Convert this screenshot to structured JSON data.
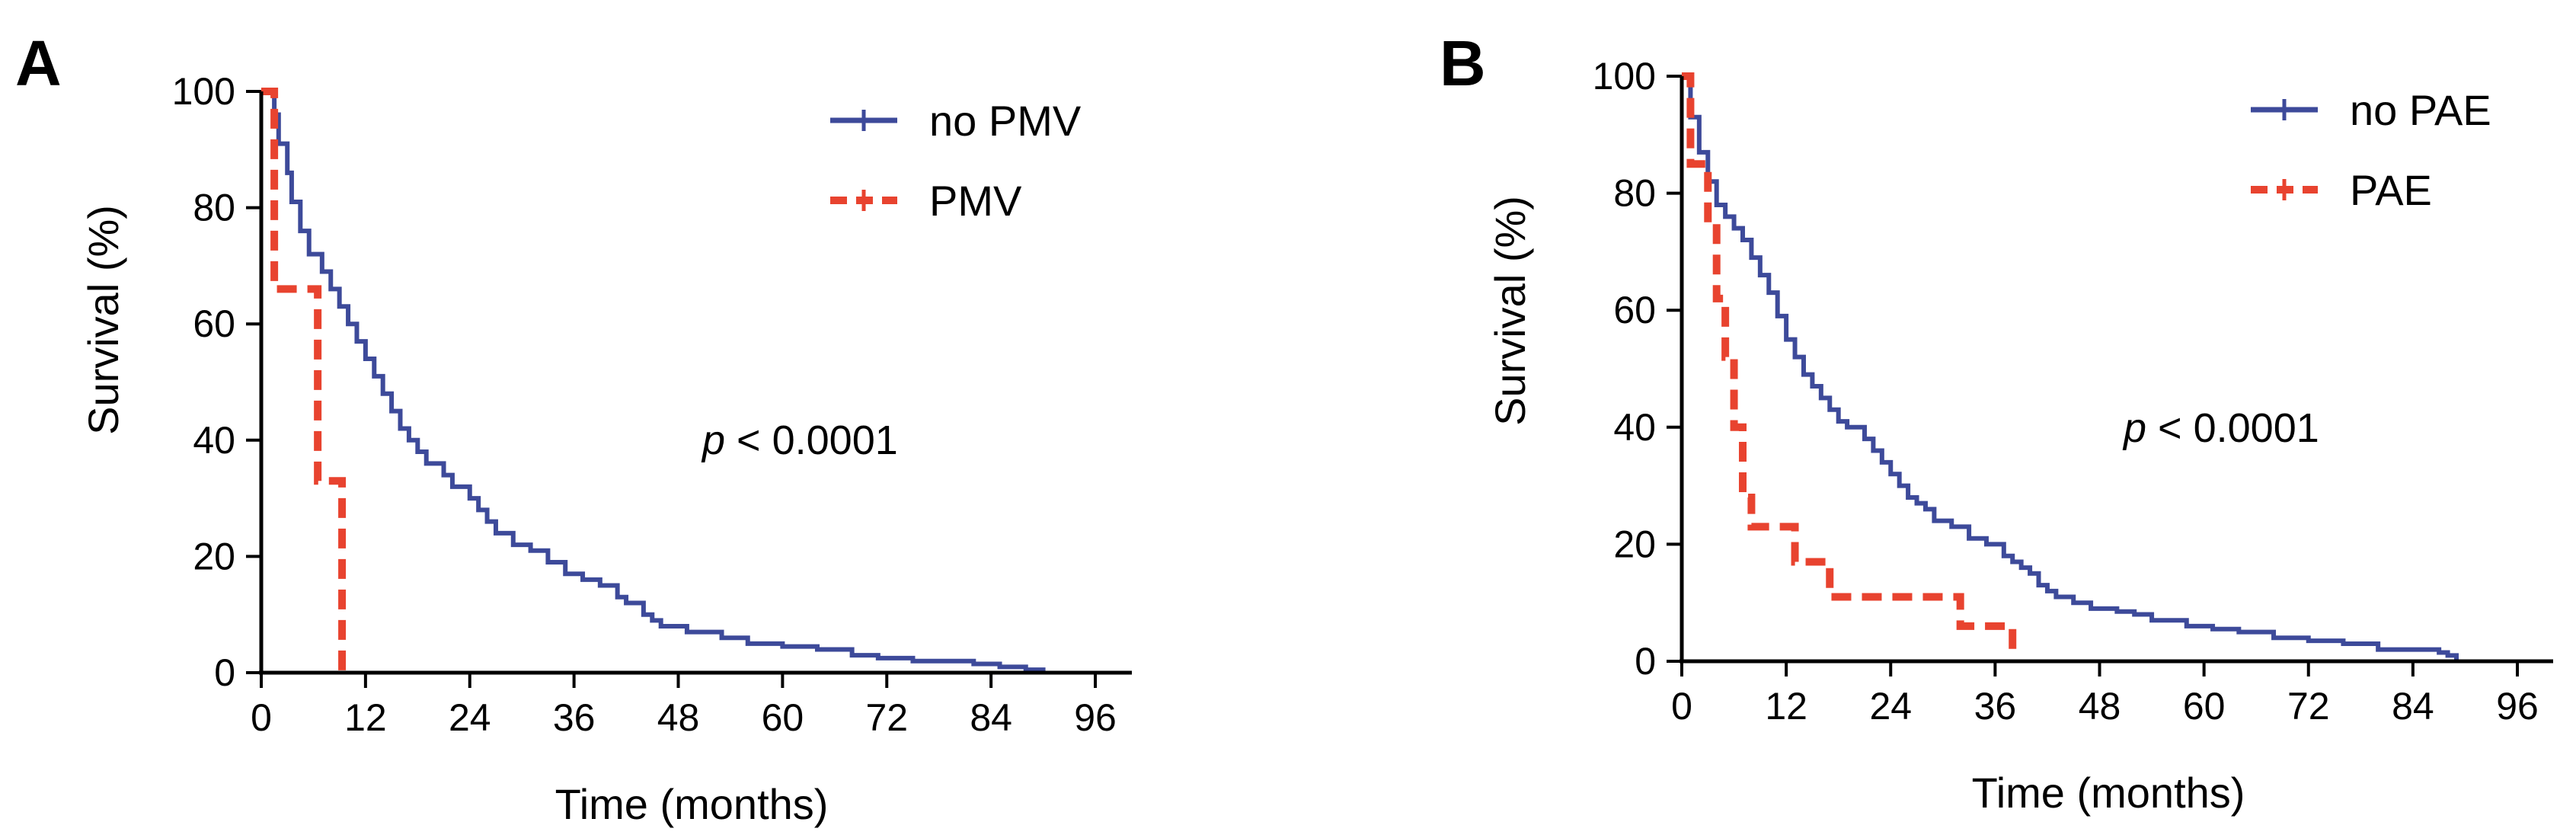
{
  "chart_data": [
    {
      "type": "line",
      "subtype": "kaplan-meier",
      "panel_label": "A",
      "xlabel": "Time (months)",
      "ylabel": "Survival (%)",
      "xlim": [
        0,
        96
      ],
      "ylim": [
        0,
        100
      ],
      "xticks": [
        0,
        12,
        24,
        36,
        48,
        60,
        72,
        84,
        96
      ],
      "yticks": [
        0,
        20,
        40,
        60,
        80,
        100
      ],
      "legend_position": "top-right",
      "annotation": {
        "italic": "p",
        "text": " < 0.0001"
      },
      "series": [
        {
          "name": "no PMV",
          "color": "#3d4a9a",
          "style": "solid",
          "points": [
            [
              0,
              100
            ],
            [
              1.5,
              96
            ],
            [
              2,
              91
            ],
            [
              3,
              86
            ],
            [
              3.5,
              81
            ],
            [
              4.5,
              76
            ],
            [
              5.5,
              72
            ],
            [
              7,
              69
            ],
            [
              8,
              66
            ],
            [
              9,
              63
            ],
            [
              10,
              60
            ],
            [
              11,
              57
            ],
            [
              12,
              54
            ],
            [
              13,
              51
            ],
            [
              14,
              48
            ],
            [
              15,
              45
            ],
            [
              16,
              42
            ],
            [
              17,
              40
            ],
            [
              18,
              38
            ],
            [
              19,
              36
            ],
            [
              21,
              34
            ],
            [
              22,
              32
            ],
            [
              24,
              30
            ],
            [
              25,
              28
            ],
            [
              26,
              26
            ],
            [
              27,
              24
            ],
            [
              29,
              22
            ],
            [
              31,
              21
            ],
            [
              33,
              19
            ],
            [
              35,
              17
            ],
            [
              37,
              16
            ],
            [
              39,
              15
            ],
            [
              41,
              13
            ],
            [
              42,
              12
            ],
            [
              44,
              10
            ],
            [
              45,
              9
            ],
            [
              46,
              8
            ],
            [
              49,
              7
            ],
            [
              53,
              6
            ],
            [
              56,
              5
            ],
            [
              60,
              4.5
            ],
            [
              64,
              4
            ],
            [
              68,
              3
            ],
            [
              71,
              2.5
            ],
            [
              75,
              2
            ],
            [
              79,
              2
            ],
            [
              82,
              1.5
            ],
            [
              85,
              1
            ],
            [
              88,
              0.5
            ],
            [
              90,
              0
            ]
          ]
        },
        {
          "name": "PMV",
          "color": "#e8432f",
          "style": "dashed",
          "points": [
            [
              0,
              100
            ],
            [
              1,
              100
            ],
            [
              1.5,
              66
            ],
            [
              6,
              66
            ],
            [
              6.5,
              33
            ],
            [
              9,
              33
            ],
            [
              9.3,
              0
            ]
          ]
        }
      ]
    },
    {
      "type": "line",
      "subtype": "kaplan-meier",
      "panel_label": "B",
      "xlabel": "Time (months)",
      "ylabel": "Survival (%)",
      "xlim": [
        0,
        96
      ],
      "ylim": [
        0,
        100
      ],
      "xticks": [
        0,
        12,
        24,
        36,
        48,
        60,
        72,
        84,
        96
      ],
      "yticks": [
        0,
        20,
        40,
        60,
        80,
        100
      ],
      "legend_position": "top-right",
      "annotation": {
        "italic": "p",
        "text": " < 0.0001"
      },
      "series": [
        {
          "name": "no PAE",
          "color": "#3d4a9a",
          "style": "solid",
          "points": [
            [
              0,
              100
            ],
            [
              1,
              93
            ],
            [
              2,
              87
            ],
            [
              3,
              82
            ],
            [
              4,
              78
            ],
            [
              5,
              76
            ],
            [
              6,
              74
            ],
            [
              7,
              72
            ],
            [
              8,
              69
            ],
            [
              9,
              66
            ],
            [
              10,
              63
            ],
            [
              11,
              59
            ],
            [
              12,
              55
            ],
            [
              13,
              52
            ],
            [
              14,
              49
            ],
            [
              15,
              47
            ],
            [
              16,
              45
            ],
            [
              17,
              43
            ],
            [
              18,
              41
            ],
            [
              19,
              40
            ],
            [
              21,
              38
            ],
            [
              22,
              36
            ],
            [
              23,
              34
            ],
            [
              24,
              32
            ],
            [
              25,
              30
            ],
            [
              26,
              28
            ],
            [
              27,
              27
            ],
            [
              28,
              26
            ],
            [
              29,
              24
            ],
            [
              31,
              23
            ],
            [
              33,
              21
            ],
            [
              35,
              20
            ],
            [
              37,
              18
            ],
            [
              38,
              17
            ],
            [
              39,
              16
            ],
            [
              40,
              15
            ],
            [
              41,
              13
            ],
            [
              42,
              12
            ],
            [
              43,
              11
            ],
            [
              45,
              10
            ],
            [
              47,
              9
            ],
            [
              50,
              8.5
            ],
            [
              52,
              8
            ],
            [
              54,
              7
            ],
            [
              58,
              6
            ],
            [
              61,
              5.5
            ],
            [
              64,
              5
            ],
            [
              68,
              4
            ],
            [
              72,
              3.5
            ],
            [
              76,
              3
            ],
            [
              80,
              2
            ],
            [
              84,
              2
            ],
            [
              87,
              1.5
            ],
            [
              88,
              1
            ],
            [
              89,
              0
            ]
          ]
        },
        {
          "name": "PAE",
          "color": "#e8432f",
          "style": "dashed",
          "points": [
            [
              0,
              100
            ],
            [
              1,
              85
            ],
            [
              3,
              75
            ],
            [
              4,
              62
            ],
            [
              5,
              52
            ],
            [
              6,
              40
            ],
            [
              7,
              28
            ],
            [
              8,
              23
            ],
            [
              13,
              17
            ],
            [
              17,
              11
            ],
            [
              32,
              6
            ],
            [
              38,
              2
            ]
          ]
        }
      ]
    }
  ]
}
